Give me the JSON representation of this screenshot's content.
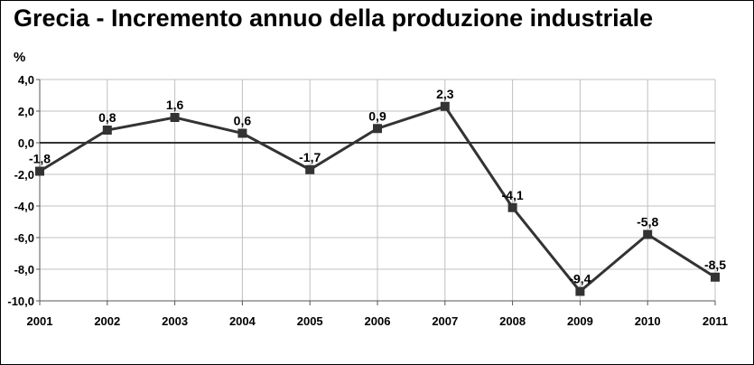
{
  "chart_data": {
    "type": "line",
    "title": "Grecia - Incremento annuo della produzione industriale",
    "ylabel": "%",
    "xlabel": "",
    "categories": [
      "2001",
      "2002",
      "2003",
      "2004",
      "2005",
      "2006",
      "2007",
      "2008",
      "2009",
      "2010",
      "2011"
    ],
    "series": [
      {
        "values": [
          -1.8,
          0.8,
          1.6,
          0.6,
          -1.7,
          0.9,
          2.3,
          -4.1,
          -9.4,
          -5.8,
          -8.5
        ]
      }
    ],
    "data_labels": [
      "-1,8",
      "0,8",
      "1,6",
      "0,6",
      "-1,7",
      "0,9",
      "2,3",
      "-4,1",
      "-9,4",
      "-5,8",
      "-8,5"
    ],
    "ylim": [
      -10,
      4
    ],
    "yticks": [
      4,
      2,
      0,
      -2,
      -4,
      -6,
      -8,
      -10
    ],
    "ytick_labels": [
      "4,0",
      "2,0",
      "0,0",
      "-2,0",
      "-4,0",
      "-6,0",
      "-8,0",
      "-10,0"
    ],
    "grid": true,
    "line_color": "#333333",
    "grid_color": "#c0c0c0",
    "zero_line_color": "#333333"
  }
}
